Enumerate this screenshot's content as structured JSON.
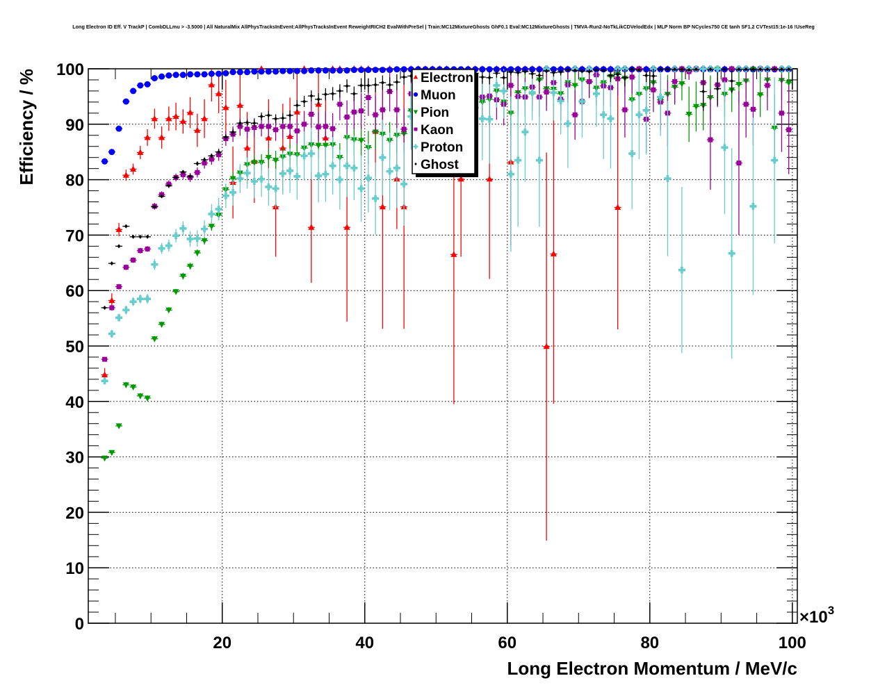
{
  "chart_data": {
    "type": "scatter",
    "title": "Long Electron ID Eff. V TrackP | CombDLLmu > -3.5000 | All NaturalMix AllPhysTracksInEvent:AllPhysTracksInEvent ReweightRICH2 EvalWithPreSel | Train:MC12MixtureGhosts GhF0.1 Eval:MC12MixtureGhosts | TMVA-Run2-NoTkLikCDVelodEdx | MLP Norm BP NCycles750 CE tanh SF1.2 CVTest15:1e-16 !UseReg",
    "xlabel": "Long Electron Momentum / MeV/c",
    "ylabel": "Efficiency / %",
    "x_multiplier": "×10",
    "x_multiplier_exp": "3",
    "xlim": [
      1.2,
      100.7
    ],
    "ylim": [
      0,
      100
    ],
    "xticks": [
      "20",
      "40",
      "60",
      "80",
      "100"
    ],
    "yticks": [
      "0",
      "10",
      "20",
      "30",
      "40",
      "50",
      "60",
      "70",
      "80",
      "90",
      "100"
    ],
    "grid": true,
    "legend_position": "top-center",
    "x_start": 3.5,
    "x_step": 1.0,
    "series": [
      {
        "name": "Electron",
        "color": "#ff0000",
        "marker": "triangle-up",
        "values": [
          44.8,
          58.2,
          71.0,
          80.8,
          81.9,
          84.9,
          87.6,
          91.0,
          87.6,
          91.0,
          91.4,
          90.5,
          92.1,
          88.9,
          91.0,
          97.1,
          95.5,
          93.0,
          79.5,
          93.4,
          85.7,
          83.3,
          100,
          87.5,
          75.1,
          85.7,
          87.8,
          92.2,
          100,
          71.4,
          93.6,
          87.5,
          100,
          100,
          71.4,
          100,
          100,
          100,
          88.7,
          75.1,
          100,
          80.1,
          75.1,
          100,
          100,
          100,
          100,
          100,
          100,
          66.5,
          80.1,
          100,
          100,
          100,
          80.1,
          100,
          100,
          83.2,
          100,
          100,
          100,
          100,
          49.9,
          66.6,
          100,
          100,
          100,
          100,
          100,
          100,
          100,
          100,
          75.0,
          100,
          100,
          100,
          100,
          100,
          100,
          100,
          100,
          100,
          100,
          100,
          100,
          100,
          100,
          100,
          100,
          100,
          100,
          100,
          100,
          100,
          100,
          100,
          100
        ],
        "err": [
          1.2,
          1.3,
          1.2,
          1.0,
          1.0,
          1.2,
          1.5,
          1.8,
          2.0,
          2.2,
          2.5,
          2.2,
          2.8,
          3.0,
          3.5,
          3.0,
          3.5,
          5,
          6.5,
          5.5,
          6.5,
          7.5,
          0,
          7,
          9,
          8,
          7,
          7,
          0,
          10,
          6,
          8,
          0,
          0,
          17,
          0,
          0,
          0,
          8,
          22,
          0,
          9,
          22,
          0,
          0,
          0,
          0,
          0,
          0,
          27,
          14,
          0,
          0,
          0,
          18,
          0,
          0,
          15,
          0,
          0,
          0,
          0,
          35,
          27,
          0,
          0,
          0,
          0,
          0,
          0,
          0,
          0,
          22,
          0,
          0,
          0,
          0,
          0,
          0,
          0,
          0,
          0,
          0,
          0,
          0,
          0,
          0,
          0,
          0,
          0,
          0,
          0,
          0,
          0,
          0,
          0,
          0
        ]
      },
      {
        "name": "Muon",
        "color": "#0000ff",
        "marker": "circle",
        "values": [
          83.3,
          85.0,
          89.2,
          94.1,
          96.0,
          97.0,
          97.2,
          98.3,
          98.6,
          98.8,
          98.9,
          98.9,
          99.0,
          99.0,
          99.0,
          99.1,
          99.1,
          99.2,
          99.4,
          99.4,
          99.4,
          99.5,
          99.5,
          99.5,
          99.5,
          99.6,
          99.6,
          99.6,
          99.6,
          99.7,
          99.7,
          99.7,
          99.7,
          99.7,
          99.7,
          99.8,
          99.8,
          99.8,
          99.8,
          99.8,
          99.8,
          99.9,
          99.9,
          99.9,
          99.9,
          99.9,
          99.9,
          99.9,
          99.9,
          99.9,
          99.9,
          99.9,
          99.9,
          99.9,
          99.9,
          99.9,
          99.9,
          99.9,
          99.9,
          99.9,
          99.9,
          99.9,
          99.9,
          99.9,
          99.9,
          99.9,
          99.9,
          99.9,
          99.9,
          99.9,
          99.9,
          99.9,
          99.9,
          99.9,
          99.9,
          99.9,
          99.9,
          99.9,
          99.9,
          99.9,
          99.9,
          99.9,
          99.9,
          99.9,
          99.9,
          99.9,
          99.9,
          99.9,
          99.9,
          99.9,
          99.9,
          99.9,
          99.9,
          99.9,
          99.9,
          99.9,
          99.9
        ],
        "err": [
          0.4,
          0.4,
          0.3,
          0.3,
          0.3,
          0.2,
          0.2,
          0.2,
          0.2,
          0.2,
          0.2,
          0.2,
          0.2,
          0.2,
          0.2,
          0.2,
          0.2,
          0.2,
          0.2,
          0.2,
          0.2,
          0.2,
          0.2,
          0.2,
          0.2,
          0.2,
          0.2,
          0.2,
          0.2,
          0.2,
          0.2,
          0.2,
          0.2,
          0.2,
          0.2,
          0.2,
          0.2,
          0.2,
          0.2,
          0.2,
          0.2,
          0.1,
          0.1,
          0.1,
          0.1,
          0.1,
          0.1,
          0.1,
          0.1,
          0.1,
          0.1,
          0.1,
          0.1,
          0.1,
          0.1,
          0.1,
          0.1,
          0.1,
          0.1,
          0.1,
          0.1,
          0.1,
          0.1,
          0.1,
          0.1,
          0.1,
          0.1,
          0.1,
          0.1,
          0.1,
          0.1,
          0.1,
          0.1,
          0.1,
          0.1,
          0.1,
          0.1,
          0.1,
          0.1,
          0.1,
          0.1,
          0.1,
          0.1,
          0.1,
          0.1,
          0.1,
          0.1,
          0.1,
          0.1,
          0.1,
          0.1,
          0.1,
          0.1,
          0.1,
          0.1,
          0.1,
          0.1
        ]
      },
      {
        "name": "Pion",
        "color": "#009900",
        "marker": "triangle-down",
        "values": [
          29.8,
          30.8,
          35.6,
          43.0,
          42.6,
          41.0,
          40.6,
          51.3,
          53.9,
          56.5,
          59.8,
          62.6,
          64.4,
          66.8,
          69.0,
          71.6,
          73.6,
          78.2,
          80.2,
          81.2,
          82.7,
          83.1,
          83.1,
          84.0,
          83.5,
          84.1,
          84.6,
          84.5,
          85.7,
          86.3,
          86.2,
          86.2,
          86.3,
          84.0,
          87.6,
          87.2,
          87.1,
          85.8,
          88.6,
          88.2,
          87.1,
          88.0,
          88.3,
          92.4,
          90.5,
          91.5,
          93.0,
          92.5,
          94.0,
          93.5,
          95.0,
          94.6,
          94.6,
          94.0,
          94.5,
          96.0,
          94.0,
          92.0,
          95.7,
          96.4,
          95.5,
          98.0,
          96.4,
          96.3,
          95.5,
          97.5,
          97.0,
          98.0,
          97.6,
          96.5,
          97.5,
          98.6,
          99.0,
          98.3,
          94.4,
          95.4,
          96.4,
          97.5,
          94.4,
          95.4,
          96.7,
          97.3,
          91.8,
          93.2,
          93.4,
          94.8,
          99.9,
          95.4,
          96.2,
          97.2,
          97.8,
          99.9,
          95.3,
          98.0,
          89.3,
          97.9,
          97.5
        ],
        "err": [
          0.3,
          0.4,
          0.4,
          0.5,
          0.5,
          0.5,
          0.5,
          0.5,
          0.5,
          0.5,
          0.5,
          0.6,
          0.6,
          0.6,
          0.7,
          0.8,
          0.9,
          1.0,
          1.2,
          1.2,
          1.3,
          1.4,
          1.5,
          1.6,
          1.7,
          1.8,
          1.9,
          2.0,
          2.1,
          2.2,
          2.3,
          2.4,
          2.5,
          2.6,
          2.7,
          2.8,
          2.9,
          3.0,
          3.1,
          3.2,
          3.3,
          3.4,
          3.5,
          3.0,
          3.2,
          3.3,
          3.0,
          3.2,
          3.0,
          3.0,
          2.8,
          3.0,
          3.0,
          3.2,
          3.0,
          2.8,
          3.2,
          4.0,
          3.0,
          3.0,
          3.0,
          2.5,
          3.0,
          3.0,
          3.2,
          2.8,
          3.0,
          2.8,
          2.8,
          3.0,
          2.8,
          2.5,
          2.2,
          2.8,
          4.0,
          3.5,
          3.5,
          3.0,
          4.0,
          3.5,
          3.2,
          3.0,
          5.0,
          4.5,
          4.5,
          4.0,
          1.0,
          4.0,
          4.0,
          3.5,
          3.2,
          1.0,
          4.0,
          3.0,
          6.0,
          3.5,
          3.5
        ]
      },
      {
        "name": "Kaon",
        "color": "#990099",
        "marker": "square",
        "values": [
          47.6,
          56.9,
          60.7,
          64.2,
          65.5,
          67.2,
          67.5,
          75.2,
          77.3,
          79.2,
          80.4,
          80.9,
          80.4,
          81.3,
          83.0,
          83.7,
          84.5,
          87.4,
          88.2,
          89.6,
          89.1,
          89.4,
          89.6,
          89.6,
          89.0,
          89.6,
          89.6,
          88.8,
          90.0,
          91.8,
          89.5,
          89.6,
          89.2,
          93.6,
          91.3,
          92.2,
          92.4,
          94.8,
          91.7,
          92.6,
          95.9,
          92.6,
          89.1,
          95.5,
          91.0,
          94.0,
          95.0,
          94.0,
          96.0,
          95.0,
          94.0,
          96.0,
          95.0,
          94.9,
          95.1,
          94.4,
          93.6,
          97.0,
          95.0,
          94.9,
          96.7,
          94.9,
          95.8,
          97.5,
          94.5,
          97.1,
          91.7,
          94.1,
          97.7,
          98.9,
          96.9,
          96.6,
          98.2,
          92.6,
          98.5,
          100,
          90.9,
          96.2,
          94.0,
          92.0,
          97.7,
          100,
          99.5,
          100,
          97.5,
          87.2,
          97.1,
          98.0,
          100,
          83.0,
          93.6,
          92.7,
          100,
          97.0,
          100,
          92.0,
          89.0
        ],
        "err": [
          0.4,
          0.5,
          0.5,
          0.5,
          0.5,
          0.5,
          0.5,
          0.6,
          0.6,
          0.7,
          0.7,
          0.8,
          0.8,
          0.9,
          1.0,
          1.0,
          1.1,
          1.3,
          1.4,
          1.5,
          1.6,
          1.7,
          1.8,
          1.9,
          2.0,
          2.1,
          2.2,
          2.3,
          2.4,
          2.5,
          2.6,
          2.7,
          2.8,
          2.9,
          3.0,
          3.1,
          3.2,
          3.3,
          3.4,
          3.5,
          3.6,
          3.7,
          3.8,
          3.5,
          3.8,
          3.6,
          3.5,
          3.6,
          3.4,
          3.5,
          3.6,
          3.4,
          3.5,
          3.5,
          3.5,
          3.6,
          3.8,
          3.0,
          3.5,
          3.5,
          3.2,
          3.5,
          3.4,
          3.0,
          3.8,
          3.2,
          4.5,
          4.0,
          3.0,
          2.5,
          3.5,
          3.5,
          3.0,
          5.0,
          3.0,
          0.5,
          6.0,
          4.0,
          5.0,
          6.0,
          4.0,
          0.5,
          1.5,
          0.5,
          4.5,
          9.0,
          4.0,
          4.0,
          0.5,
          13.0,
          6.0,
          6.5,
          0.5,
          4.5,
          0.5,
          7.0,
          8.0
        ]
      },
      {
        "name": "Proton",
        "color": "#66cccc",
        "marker": "cross",
        "values": [
          43.7,
          52.2,
          55.1,
          56.5,
          58.0,
          58.5,
          58.5,
          64.7,
          67.6,
          68.1,
          69.9,
          71.2,
          69.3,
          69.4,
          71.1,
          73.8,
          74.7,
          77.1,
          77.7,
          80.2,
          81.2,
          79.7,
          80.1,
          78.7,
          78.4,
          81.1,
          81.6,
          80.6,
          84.3,
          84.7,
          80.7,
          81.0,
          82.5,
          80.0,
          82.5,
          82.1,
          78.4,
          80.3,
          76.6,
          84.0,
          81.5,
          82.1,
          79.2,
          91.4,
          94.0,
          89.5,
          95.0,
          93.0,
          96.0,
          98.0,
          97.0,
          95.0,
          93.0,
          91.0,
          90.9,
          97.0,
          96.0,
          81.0,
          83.5,
          88.6,
          95.7,
          83.5,
          100,
          95.7,
          94.2,
          90.1,
          100,
          94.1,
          100,
          95.5,
          91.7,
          91.0,
          100,
          100,
          84.7,
          91.7,
          92.5,
          100,
          94.9,
          80.2,
          100,
          63.7,
          100,
          100,
          100,
          100,
          100,
          85.8,
          66.7,
          100,
          100,
          75.2,
          100,
          100,
          83.5,
          100,
          100
        ],
        "err": [
          0.6,
          0.7,
          0.7,
          0.8,
          0.8,
          0.8,
          0.9,
          1.0,
          1.0,
          1.1,
          1.2,
          1.3,
          1.4,
          1.5,
          1.6,
          1.8,
          2.0,
          2.2,
          2.4,
          2.6,
          2.8,
          3.0,
          3.2,
          3.4,
          3.6,
          3.8,
          4.0,
          4.2,
          4.4,
          4.6,
          4.8,
          5.0,
          5.2,
          5.4,
          5.6,
          5.8,
          6.0,
          6.2,
          6.5,
          6.8,
          7.0,
          7.2,
          7.5,
          6.0,
          5.5,
          7.0,
          5.0,
          6.0,
          4.5,
          3.0,
          4.0,
          5.5,
          6.5,
          7.5,
          8.0,
          4.0,
          5.0,
          14.0,
          12.0,
          9.0,
          5.0,
          12.0,
          0.5,
          5.0,
          6.0,
          8.0,
          0.5,
          6.5,
          0.5,
          6.0,
          8.0,
          9.0,
          0.5,
          0.5,
          10.0,
          8.0,
          8.0,
          0.5,
          7.0,
          14.0,
          0.5,
          15.0,
          0.5,
          0.5,
          0.5,
          0.5,
          0.5,
          12.0,
          19.0,
          0.5,
          0.5,
          16.0,
          0.5,
          0.5,
          15.0,
          0.5,
          0.5
        ]
      },
      {
        "name": "Ghost",
        "color": "#000000",
        "marker": "diamond",
        "values": [
          56.9,
          64.9,
          68.0,
          71.6,
          69.7,
          69.7,
          69.7,
          75.1,
          77.0,
          78.9,
          80.4,
          81.4,
          80.6,
          82.9,
          83.6,
          84.3,
          85.0,
          87.7,
          88.6,
          90.2,
          90.3,
          90.2,
          91.4,
          91.6,
          91.0,
          91.1,
          91.6,
          93.4,
          94.1,
          95.1,
          94.5,
          95.4,
          95.5,
          96.0,
          96.9,
          95.5,
          97.0,
          97.0,
          97.1,
          97.5,
          97.1,
          97.6,
          98.5,
          98.7,
          98.8,
          99.0,
          98.9,
          99.1,
          99.0,
          99.2,
          99.1,
          98.9,
          99.2,
          98.5,
          98.4,
          99.2,
          98.4,
          99.4,
          99.3,
          99.5,
          99.1,
          98.8,
          99.6,
          99.3,
          99.4,
          99.8,
          99.7,
          99.6,
          99.5,
          99.8,
          99.7,
          98.8,
          99.0,
          98.4,
          99.9,
          99.8,
          98.8,
          98.7,
          99.9,
          99.9,
          99.9,
          99.9,
          99.8,
          99.9,
          95.9,
          99.9,
          96.4,
          99.9,
          97.8,
          99.9,
          99.9,
          99.9,
          99.9,
          99.9,
          99.9,
          99.9,
          99.9
        ],
        "err": [
          0.3,
          0.3,
          0.3,
          0.3,
          0.3,
          0.3,
          0.3,
          0.3,
          0.3,
          0.3,
          0.3,
          0.3,
          0.4,
          0.4,
          0.4,
          0.4,
          0.5,
          0.5,
          0.6,
          0.6,
          0.6,
          0.7,
          0.7,
          0.8,
          0.8,
          0.9,
          0.9,
          1.0,
          1.0,
          1.0,
          1.1,
          1.1,
          1.2,
          1.2,
          1.2,
          1.3,
          1.3,
          1.3,
          1.3,
          1.3,
          1.4,
          1.4,
          1.4,
          1.0,
          1.0,
          1.0,
          1.0,
          1.0,
          1.0,
          0.8,
          1.0,
          1.0,
          0.8,
          1.2,
          1.2,
          0.8,
          1.2,
          0.6,
          0.7,
          0.5,
          0.9,
          1.2,
          0.4,
          0.7,
          0.6,
          0.2,
          0.3,
          0.4,
          0.5,
          0.2,
          0.3,
          1.2,
          1.0,
          1.6,
          0.1,
          0.2,
          1.2,
          1.3,
          0.1,
          0.1,
          0.1,
          0.1,
          0.2,
          0.1,
          3.5,
          0.1,
          3.0,
          0.1,
          2.2,
          0.1,
          0.1,
          0.1,
          0.1,
          0.1,
          0.1,
          0.1,
          0.1
        ]
      }
    ]
  }
}
